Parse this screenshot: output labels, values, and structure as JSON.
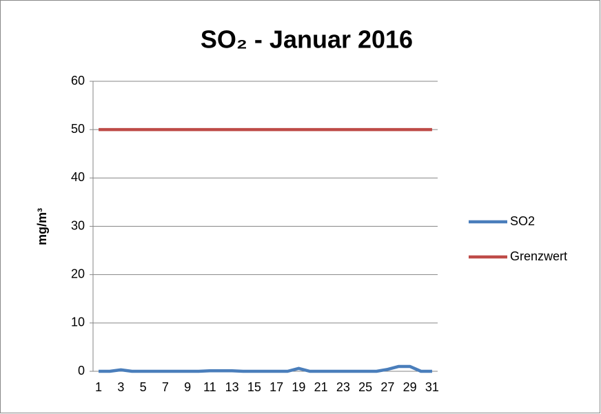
{
  "chart_data": {
    "type": "line",
    "title": "SO₂ - Januar 2016",
    "y_label": "mg/m³",
    "categories": [
      1,
      null,
      3,
      null,
      5,
      null,
      7,
      null,
      9,
      null,
      11,
      null,
      13,
      null,
      15,
      null,
      17,
      null,
      19,
      null,
      21,
      null,
      23,
      null,
      25,
      null,
      27,
      null,
      29,
      null,
      31
    ],
    "series": [
      {
        "name": "SO2",
        "color": "#4a7ebb",
        "values": [
          0,
          0,
          0.3,
          0,
          0,
          0,
          0,
          0,
          0,
          0,
          0.1,
          0.1,
          0.1,
          0,
          0,
          0,
          0,
          0,
          0.6,
          0,
          0,
          0,
          0,
          0,
          0,
          0,
          0.4,
          1,
          1,
          0,
          0
        ]
      },
      {
        "name": "Grenzwert",
        "color": "#be4b48",
        "values": [
          50,
          50,
          50,
          50,
          50,
          50,
          50,
          50,
          50,
          50,
          50,
          50,
          50,
          50,
          50,
          50,
          50,
          50,
          50,
          50,
          50,
          50,
          50,
          50,
          50,
          50,
          50,
          50,
          50,
          50,
          50
        ]
      }
    ],
    "ylim": [
      0,
      60
    ],
    "yticks": [
      0,
      10,
      20,
      30,
      40,
      50,
      60
    ],
    "grid": true,
    "legend": "right"
  }
}
